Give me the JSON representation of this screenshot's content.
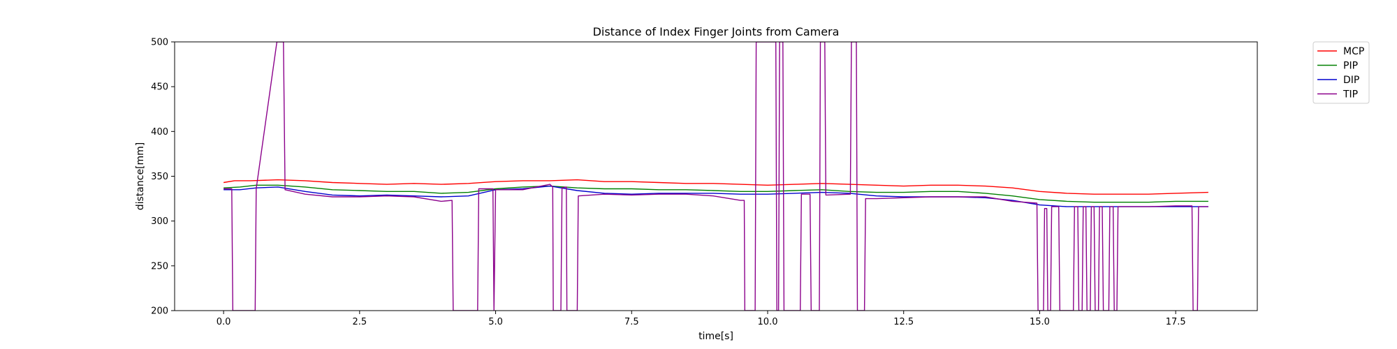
{
  "chart_data": {
    "type": "line",
    "title": "Distance of Index Finger Joints from Camera",
    "xlabel": "time[s]",
    "ylabel": "distance[mm]",
    "xlim": [
      -0.9,
      19.0
    ],
    "ylim": [
      200,
      500
    ],
    "x_ticks": [
      0.0,
      2.5,
      5.0,
      7.5,
      10.0,
      12.5,
      15.0,
      17.5
    ],
    "x_tick_labels": [
      "0.0",
      "2.5",
      "5.0",
      "7.5",
      "10.0",
      "12.5",
      "15.0",
      "17.5"
    ],
    "y_ticks": [
      200,
      250,
      300,
      350,
      400,
      450,
      500
    ],
    "y_tick_labels": [
      "200",
      "250",
      "300",
      "350",
      "400",
      "450",
      "500"
    ],
    "grid": false,
    "legend_position": "outside upper right",
    "series": [
      {
        "name": "MCP",
        "color": "#ff0000",
        "points": [
          [
            0.0,
            343
          ],
          [
            0.2,
            345
          ],
          [
            0.5,
            345
          ],
          [
            1.0,
            346
          ],
          [
            1.5,
            345
          ],
          [
            2.0,
            343
          ],
          [
            2.5,
            342
          ],
          [
            3.0,
            341
          ],
          [
            3.5,
            342
          ],
          [
            4.0,
            341
          ],
          [
            4.5,
            342
          ],
          [
            5.0,
            344
          ],
          [
            5.5,
            345
          ],
          [
            6.0,
            345
          ],
          [
            6.5,
            346
          ],
          [
            7.0,
            344
          ],
          [
            7.5,
            344
          ],
          [
            8.0,
            343
          ],
          [
            8.5,
            342
          ],
          [
            9.0,
            342
          ],
          [
            9.5,
            341
          ],
          [
            10.0,
            340
          ],
          [
            10.5,
            341
          ],
          [
            11.0,
            342
          ],
          [
            11.5,
            341
          ],
          [
            12.0,
            340
          ],
          [
            12.5,
            339
          ],
          [
            13.0,
            340
          ],
          [
            13.5,
            340
          ],
          [
            14.0,
            339
          ],
          [
            14.5,
            337
          ],
          [
            15.0,
            333
          ],
          [
            15.5,
            331
          ],
          [
            16.0,
            330
          ],
          [
            16.5,
            330
          ],
          [
            17.0,
            330
          ],
          [
            17.5,
            331
          ],
          [
            18.1,
            332
          ]
        ]
      },
      {
        "name": "PIP",
        "color": "#008000",
        "points": [
          [
            0.0,
            337
          ],
          [
            0.3,
            338
          ],
          [
            0.6,
            340
          ],
          [
            1.0,
            340
          ],
          [
            1.5,
            338
          ],
          [
            2.0,
            335
          ],
          [
            2.5,
            334
          ],
          [
            3.0,
            333
          ],
          [
            3.5,
            333
          ],
          [
            4.0,
            331
          ],
          [
            4.5,
            332
          ],
          [
            5.0,
            336
          ],
          [
            5.5,
            338
          ],
          [
            6.0,
            339
          ],
          [
            6.5,
            337
          ],
          [
            7.0,
            336
          ],
          [
            7.5,
            336
          ],
          [
            8.0,
            335
          ],
          [
            8.5,
            335
          ],
          [
            9.0,
            334
          ],
          [
            9.5,
            333
          ],
          [
            10.0,
            333
          ],
          [
            10.5,
            334
          ],
          [
            11.0,
            335
          ],
          [
            11.5,
            333
          ],
          [
            12.0,
            332
          ],
          [
            12.5,
            332
          ],
          [
            13.0,
            333
          ],
          [
            13.5,
            333
          ],
          [
            14.0,
            331
          ],
          [
            14.5,
            328
          ],
          [
            15.0,
            324
          ],
          [
            15.5,
            322
          ],
          [
            16.0,
            321
          ],
          [
            16.5,
            321
          ],
          [
            17.0,
            321
          ],
          [
            17.5,
            322
          ],
          [
            18.1,
            322
          ]
        ]
      },
      {
        "name": "DIP",
        "color": "#0000cd",
        "points": [
          [
            0.0,
            335
          ],
          [
            0.3,
            335
          ],
          [
            0.6,
            337
          ],
          [
            1.0,
            338
          ],
          [
            1.5,
            333
          ],
          [
            2.0,
            329
          ],
          [
            2.5,
            328
          ],
          [
            3.0,
            329
          ],
          [
            3.5,
            328
          ],
          [
            4.0,
            327
          ],
          [
            4.5,
            328
          ],
          [
            5.0,
            335
          ],
          [
            5.5,
            336
          ],
          [
            6.0,
            339
          ],
          [
            6.5,
            334
          ],
          [
            7.0,
            331
          ],
          [
            7.5,
            330
          ],
          [
            8.0,
            331
          ],
          [
            8.5,
            331
          ],
          [
            9.0,
            331
          ],
          [
            9.5,
            330
          ],
          [
            10.0,
            330
          ],
          [
            10.5,
            331
          ],
          [
            11.0,
            332
          ],
          [
            11.5,
            331
          ],
          [
            12.0,
            328
          ],
          [
            12.5,
            327
          ],
          [
            13.0,
            327
          ],
          [
            13.5,
            327
          ],
          [
            14.0,
            326
          ],
          [
            14.5,
            323
          ],
          [
            15.0,
            318
          ],
          [
            15.5,
            316
          ],
          [
            16.0,
            316
          ],
          [
            16.5,
            316
          ],
          [
            17.0,
            316
          ],
          [
            17.5,
            316
          ],
          [
            18.1,
            316
          ]
        ]
      },
      {
        "name": "TIP",
        "color": "#8b008b",
        "points": [
          [
            0.0,
            336
          ],
          [
            0.15,
            336
          ],
          [
            0.17,
            200
          ],
          [
            0.58,
            200
          ],
          [
            0.6,
            336
          ],
          [
            0.98,
            500
          ],
          [
            1.1,
            500
          ],
          [
            1.13,
            335
          ],
          [
            1.5,
            330
          ],
          [
            2.0,
            327
          ],
          [
            2.5,
            327
          ],
          [
            3.0,
            328
          ],
          [
            3.5,
            327
          ],
          [
            4.0,
            322
          ],
          [
            4.2,
            323
          ],
          [
            4.22,
            200
          ],
          [
            4.67,
            200
          ],
          [
            4.69,
            336
          ],
          [
            4.95,
            336
          ],
          [
            4.97,
            200
          ],
          [
            5.0,
            335
          ],
          [
            5.5,
            335
          ],
          [
            6.0,
            341
          ],
          [
            6.05,
            338
          ],
          [
            6.06,
            200
          ],
          [
            6.2,
            200
          ],
          [
            6.22,
            337
          ],
          [
            6.3,
            338
          ],
          [
            6.31,
            200
          ],
          [
            6.5,
            200
          ],
          [
            6.52,
            328
          ],
          [
            7.0,
            330
          ],
          [
            7.5,
            329
          ],
          [
            8.0,
            330
          ],
          [
            8.5,
            330
          ],
          [
            9.0,
            328
          ],
          [
            9.5,
            323
          ],
          [
            9.57,
            323
          ],
          [
            9.58,
            200
          ],
          [
            9.77,
            200
          ],
          [
            9.79,
            500
          ],
          [
            10.15,
            500
          ],
          [
            10.17,
            200
          ],
          [
            10.2,
            200
          ],
          [
            10.22,
            500
          ],
          [
            10.28,
            500
          ],
          [
            10.3,
            200
          ],
          [
            10.6,
            200
          ],
          [
            10.62,
            330
          ],
          [
            10.78,
            330
          ],
          [
            10.8,
            200
          ],
          [
            10.95,
            200
          ],
          [
            10.97,
            500
          ],
          [
            11.05,
            500
          ],
          [
            11.07,
            329
          ],
          [
            11.52,
            330
          ],
          [
            11.54,
            500
          ],
          [
            11.63,
            500
          ],
          [
            11.65,
            200
          ],
          [
            11.78,
            200
          ],
          [
            11.8,
            325
          ],
          [
            12.0,
            325
          ],
          [
            12.5,
            326
          ],
          [
            13.0,
            327
          ],
          [
            13.5,
            327
          ],
          [
            14.0,
            327
          ],
          [
            14.5,
            322
          ],
          [
            14.95,
            320
          ],
          [
            14.97,
            200
          ],
          [
            15.07,
            200
          ],
          [
            15.09,
            314
          ],
          [
            15.13,
            314
          ],
          [
            15.15,
            200
          ],
          [
            15.2,
            200
          ],
          [
            15.22,
            316
          ],
          [
            15.35,
            316
          ],
          [
            15.37,
            200
          ],
          [
            15.62,
            200
          ],
          [
            15.64,
            316
          ],
          [
            15.7,
            316
          ],
          [
            15.72,
            200
          ],
          [
            15.78,
            200
          ],
          [
            15.8,
            316
          ],
          [
            15.85,
            316
          ],
          [
            15.87,
            200
          ],
          [
            15.93,
            200
          ],
          [
            15.95,
            316
          ],
          [
            16.0,
            316
          ],
          [
            16.02,
            200
          ],
          [
            16.08,
            200
          ],
          [
            16.1,
            316
          ],
          [
            16.15,
            316
          ],
          [
            16.17,
            200
          ],
          [
            16.27,
            200
          ],
          [
            16.29,
            316
          ],
          [
            16.35,
            316
          ],
          [
            16.37,
            200
          ],
          [
            16.42,
            200
          ],
          [
            16.44,
            316
          ],
          [
            17.0,
            316
          ],
          [
            17.5,
            317
          ],
          [
            17.8,
            317
          ],
          [
            17.82,
            200
          ],
          [
            17.9,
            200
          ],
          [
            17.92,
            316
          ],
          [
            18.1,
            316
          ]
        ]
      }
    ]
  }
}
